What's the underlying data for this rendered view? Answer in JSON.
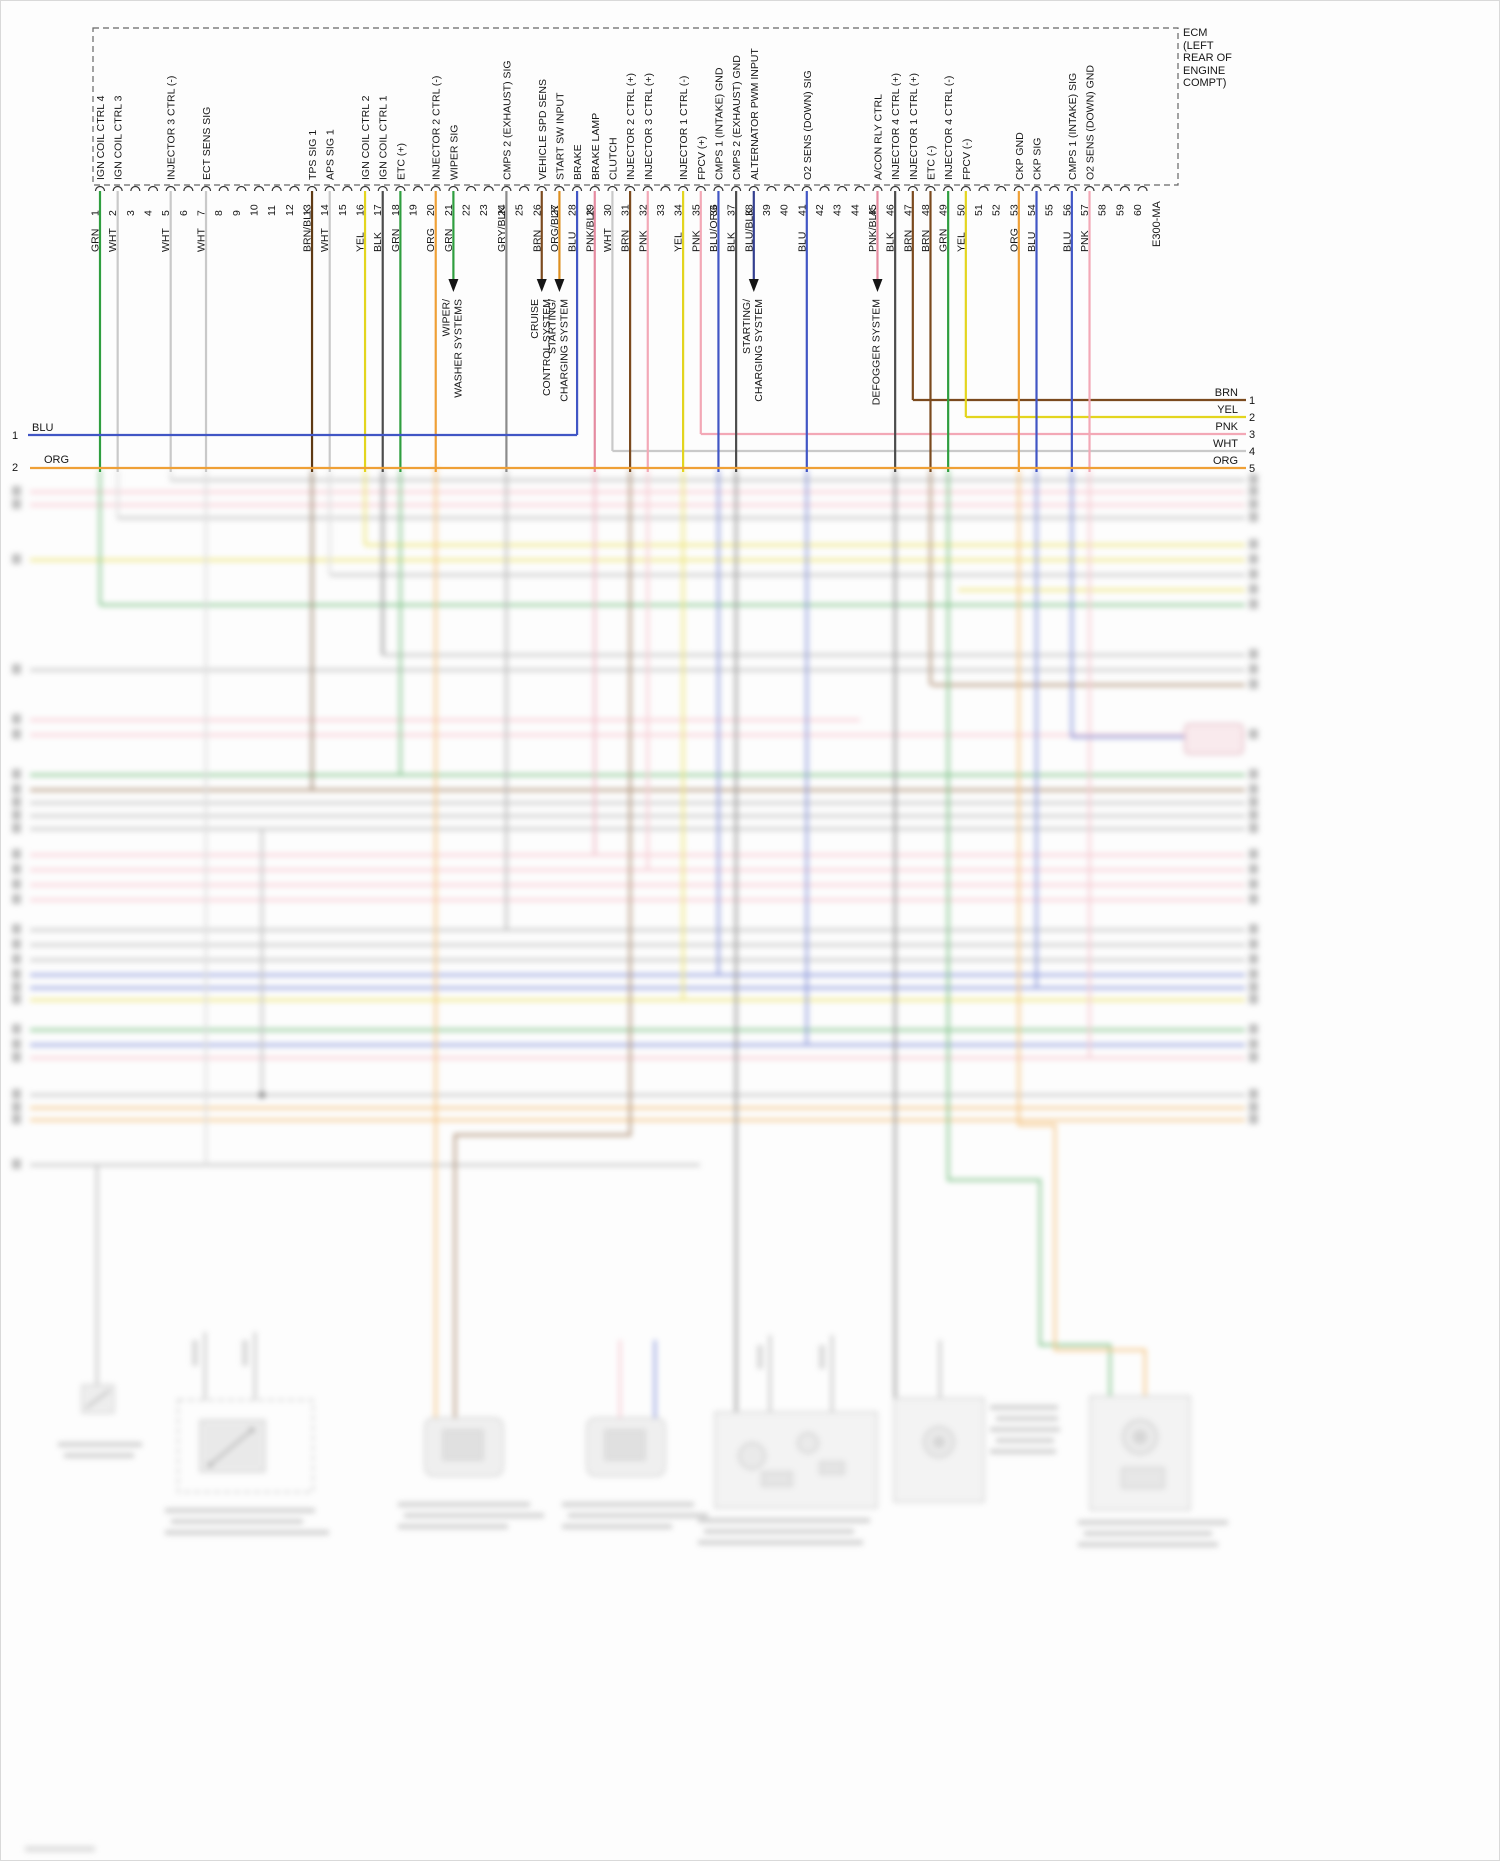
{
  "ecm": {
    "label_lines": [
      "ECM",
      "(LEFT",
      "REAR OF",
      "ENGINE",
      "COMPT)"
    ],
    "connector_id": "E300-MA"
  },
  "pins": [
    {
      "n": 1,
      "color": "GRN",
      "fn": "IGN COIL CTRL 4"
    },
    {
      "n": 2,
      "color": "WHT",
      "fn": "IGN COIL CTRL 3"
    },
    {
      "n": 3,
      "color": "",
      "fn": ""
    },
    {
      "n": 4,
      "color": "",
      "fn": ""
    },
    {
      "n": 5,
      "color": "WHT",
      "fn": "INJECTOR 3 CTRL (-)"
    },
    {
      "n": 6,
      "color": "",
      "fn": ""
    },
    {
      "n": 7,
      "color": "WHT",
      "fn": "ECT SENS SIG"
    },
    {
      "n": 8,
      "color": "",
      "fn": ""
    },
    {
      "n": 9,
      "color": "",
      "fn": ""
    },
    {
      "n": 10,
      "color": "",
      "fn": ""
    },
    {
      "n": 11,
      "color": "",
      "fn": ""
    },
    {
      "n": 12,
      "color": "",
      "fn": ""
    },
    {
      "n": 13,
      "color": "BRN/BLK",
      "fn": "TPS SIG 1"
    },
    {
      "n": 14,
      "color": "WHT",
      "fn": "APS SIG 1"
    },
    {
      "n": 15,
      "color": "",
      "fn": ""
    },
    {
      "n": 16,
      "color": "YEL",
      "fn": "IGN COIL CTRL 2"
    },
    {
      "n": 17,
      "color": "BLK",
      "fn": "IGN COIL CTRL 1"
    },
    {
      "n": 18,
      "color": "GRN",
      "fn": "ETC (+)"
    },
    {
      "n": 19,
      "color": "",
      "fn": ""
    },
    {
      "n": 20,
      "color": "ORG",
      "fn": "INJECTOR 2 CTRL (-)"
    },
    {
      "n": 21,
      "color": "GRN",
      "fn": "WIPER SIG"
    },
    {
      "n": 22,
      "color": "",
      "fn": ""
    },
    {
      "n": 23,
      "color": "",
      "fn": ""
    },
    {
      "n": 24,
      "color": "GRY/BLK",
      "fn": "CMPS 2 (EXHAUST) SIG"
    },
    {
      "n": 25,
      "color": "",
      "fn": ""
    },
    {
      "n": 26,
      "color": "BRN",
      "fn": "VEHICLE SPD SENS"
    },
    {
      "n": 27,
      "color": "ORG/BLK",
      "fn": "START SW INPUT"
    },
    {
      "n": 28,
      "color": "BLU",
      "fn": "BRAKE"
    },
    {
      "n": 29,
      "color": "PNK/BLK",
      "fn": "BRAKE LAMP"
    },
    {
      "n": 30,
      "color": "WHT",
      "fn": "CLUTCH"
    },
    {
      "n": 31,
      "color": "BRN",
      "fn": "INJECTOR 2 CTRL (+)"
    },
    {
      "n": 32,
      "color": "PNK",
      "fn": "INJECTOR 3 CTRL (+)"
    },
    {
      "n": 33,
      "color": "",
      "fn": ""
    },
    {
      "n": 34,
      "color": "YEL",
      "fn": "INJECTOR 1 CTRL (-)"
    },
    {
      "n": 35,
      "color": "PNK",
      "fn": "FPCV (+)"
    },
    {
      "n": 36,
      "color": "BLU/ORG",
      "fn": "CMPS 1 (INTAKE) GND"
    },
    {
      "n": 37,
      "color": "BLK",
      "fn": "CMPS 2 (EXHAUST) GND"
    },
    {
      "n": 38,
      "color": "BLU/BLK",
      "fn": "ALTERNATOR PWM INPUT"
    },
    {
      "n": 39,
      "color": "",
      "fn": ""
    },
    {
      "n": 40,
      "color": "",
      "fn": ""
    },
    {
      "n": 41,
      "color": "BLU",
      "fn": "O2 SENS (DOWN) SIG"
    },
    {
      "n": 42,
      "color": "",
      "fn": ""
    },
    {
      "n": 43,
      "color": "",
      "fn": ""
    },
    {
      "n": 44,
      "color": "",
      "fn": ""
    },
    {
      "n": 45,
      "color": "PNK/BLK",
      "fn": "A/CON RLY CTRL"
    },
    {
      "n": 46,
      "color": "BLK",
      "fn": "INJECTOR 4 CTRL (+)"
    },
    {
      "n": 47,
      "color": "BRN",
      "fn": "INJECTOR 1 CTRL (+)"
    },
    {
      "n": 48,
      "color": "BRN",
      "fn": "ETC (-)"
    },
    {
      "n": 49,
      "color": "GRN",
      "fn": "INJECTOR 4 CTRL (-)"
    },
    {
      "n": 50,
      "color": "YEL",
      "fn": "FPCV (-)"
    },
    {
      "n": 51,
      "color": "",
      "fn": ""
    },
    {
      "n": 52,
      "color": "",
      "fn": ""
    },
    {
      "n": 53,
      "color": "ORG",
      "fn": "CKP GND"
    },
    {
      "n": 54,
      "color": "BLU",
      "fn": "CKP SIG"
    },
    {
      "n": 55,
      "color": "",
      "fn": ""
    },
    {
      "n": 56,
      "color": "BLU",
      "fn": "CMPS 1 (INTAKE) SIG"
    },
    {
      "n": 57,
      "color": "PNK",
      "fn": "O2 SENS (DOWN) GND"
    },
    {
      "n": 58,
      "color": "",
      "fn": ""
    },
    {
      "n": 59,
      "color": "",
      "fn": ""
    },
    {
      "n": 60,
      "color": "",
      "fn": ""
    }
  ],
  "arrows": [
    {
      "pin": 21,
      "lines": [
        "WIPER/",
        "WASHER SYSTEMS"
      ]
    },
    {
      "pin": 26,
      "lines": [
        "CRUISE",
        "CONTROL SYSTEM"
      ]
    },
    {
      "pin": 27,
      "lines": [
        "STARTING/",
        "CHARGING SYSTEM"
      ]
    },
    {
      "pin": 38,
      "lines": [
        "STARTING/",
        "CHARGING SYSTEM"
      ]
    },
    {
      "pin": 45,
      "lines": [
        "DEFOGGER SYSTEM"
      ]
    }
  ],
  "edges": {
    "right": [
      {
        "label": "BRN",
        "num": "1"
      },
      {
        "label": "YEL",
        "num": "2"
      },
      {
        "label": "PNK",
        "num": "3"
      },
      {
        "label": "WHT",
        "num": "4"
      },
      {
        "label": "ORG",
        "num": "5"
      }
    ],
    "left": [
      {
        "label": "BLU",
        "num": "1"
      },
      {
        "label": "ORG",
        "num": "2"
      }
    ]
  },
  "palette": {
    "GRN": "#2f9e3f",
    "WHT": "#c9c9c9",
    "BRN": "#7b4a1e",
    "YEL": "#e3d51e",
    "BLK": "#4c4c4c",
    "ORG": "#efa036",
    "PNK": "#f3a8b6",
    "BLU": "#4156c5",
    "GRY": "#9b9b9b",
    "BRN/BLK": "#5f3a14",
    "ORG/BLK": "#dd8f1f",
    "PNK/BLK": "#e58ba0",
    "BLU/BLK": "#333f8f",
    "BLU/ORG": "#4156c5",
    "GRY/BLK": "#8b8b8b"
  }
}
